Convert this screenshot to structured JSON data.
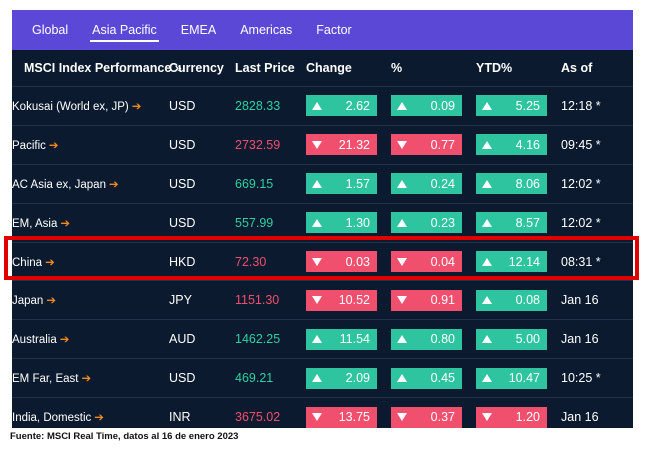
{
  "tabs": [
    "Global",
    "Asia Pacific",
    "EMEA",
    "Americas",
    "Factor"
  ],
  "active_tab": "Asia Pacific",
  "headers": {
    "index": "MSCI Index Performance »",
    "currency": "Currency",
    "last_price": "Last Price",
    "change": "Change",
    "pct": "%",
    "ytd": "YTD%",
    "as_of": "As of"
  },
  "rows": [
    {
      "name": "Kokusai (World ex, JP)",
      "currency": "USD",
      "price": "2828.33",
      "price_dir": "up",
      "change": "2.62",
      "change_dir": "up",
      "pct": "0.09",
      "pct_dir": "up",
      "ytd": "5.25",
      "ytd_dir": "up",
      "as_of": "12:18 *"
    },
    {
      "name": "Pacific",
      "currency": "USD",
      "price": "2732.59",
      "price_dir": "down",
      "change": "21.32",
      "change_dir": "down",
      "pct": "0.77",
      "pct_dir": "down",
      "ytd": "4.16",
      "ytd_dir": "up",
      "as_of": "09:45 *"
    },
    {
      "name": "AC Asia ex, Japan",
      "currency": "USD",
      "price": "669.15",
      "price_dir": "up",
      "change": "1.57",
      "change_dir": "up",
      "pct": "0.24",
      "pct_dir": "up",
      "ytd": "8.06",
      "ytd_dir": "up",
      "as_of": "12:02 *"
    },
    {
      "name": "EM, Asia",
      "currency": "USD",
      "price": "557.99",
      "price_dir": "up",
      "change": "1.30",
      "change_dir": "up",
      "pct": "0.23",
      "pct_dir": "up",
      "ytd": "8.57",
      "ytd_dir": "up",
      "as_of": "12:02 *"
    },
    {
      "name": "China",
      "currency": "HKD",
      "price": "72.30",
      "price_dir": "down",
      "change": "0.03",
      "change_dir": "down",
      "pct": "0.04",
      "pct_dir": "down",
      "ytd": "12.14",
      "ytd_dir": "up",
      "as_of": "08:31 *"
    },
    {
      "name": "Japan",
      "currency": "JPY",
      "price": "1151.30",
      "price_dir": "down",
      "change": "10.52",
      "change_dir": "down",
      "pct": "0.91",
      "pct_dir": "down",
      "ytd": "0.08",
      "ytd_dir": "up",
      "as_of": "Jan 16"
    },
    {
      "name": "Australia",
      "currency": "AUD",
      "price": "1462.25",
      "price_dir": "up",
      "change": "11.54",
      "change_dir": "up",
      "pct": "0.80",
      "pct_dir": "up",
      "ytd": "5.00",
      "ytd_dir": "up",
      "as_of": "Jan 16"
    },
    {
      "name": "EM Far, East",
      "currency": "USD",
      "price": "469.21",
      "price_dir": "up",
      "change": "2.09",
      "change_dir": "up",
      "pct": "0.45",
      "pct_dir": "up",
      "ytd": "10.47",
      "ytd_dir": "up",
      "as_of": "10:25 *"
    },
    {
      "name": "India, Domestic",
      "currency": "INR",
      "price": "3675.02",
      "price_dir": "down",
      "change": "13.75",
      "change_dir": "down",
      "pct": "0.37",
      "pct_dir": "down",
      "ytd": "1.20",
      "ytd_dir": "down",
      "as_of": "Jan 16"
    }
  ],
  "highlighted_row": "China",
  "footnote": "Fuente: MSCI Real Time, datos al 16 de enero 2023",
  "colors": {
    "tab_bar": "#5b48d6",
    "panel_bg": "#0b1a2e",
    "up_pill": "#2ec4a0",
    "down_pill": "#f0506e",
    "up_text": "#2ed1a1",
    "down_text": "#f0506e",
    "link_arrow": "#f28a1f",
    "highlight_border": "#e00000"
  },
  "icons": {
    "row_link": "arrow-right-icon",
    "up": "triangle-up-icon",
    "down": "triangle-down-icon"
  }
}
